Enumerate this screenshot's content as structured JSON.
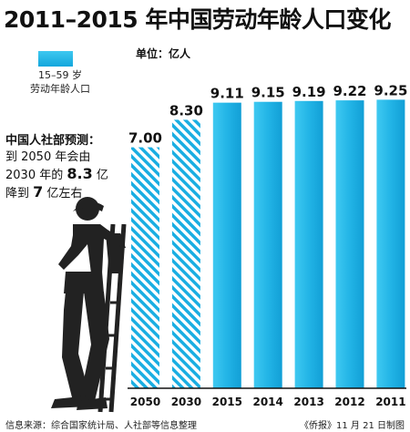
{
  "header": {
    "title": "2011–2015 年中国劳动年龄人口变化",
    "unit": "单位：亿人"
  },
  "legend": {
    "line1": "15–59 岁",
    "line2": "劳动年龄人口"
  },
  "note": {
    "head": "中国人社部预测：",
    "l1": "到 2050 年会由",
    "l2a": "2030 年的 ",
    "l2b": "8.3",
    "l2c": " 亿",
    "l3a": "降到 ",
    "l3b": "7",
    "l3c": " 亿左右"
  },
  "footer": {
    "source": "信息来源：综合国家统计局、人社部等信息整理",
    "credit": "《侨报》11 月 21 日制图"
  },
  "chart_data": {
    "type": "bar",
    "categories": [
      "2050",
      "2030",
      "2015",
      "2014",
      "2013",
      "2012",
      "2011"
    ],
    "values": [
      7.0,
      8.3,
      9.11,
      9.15,
      9.19,
      9.22,
      9.25
    ],
    "value_labels": [
      "7.00",
      "8.30",
      "9.11",
      "9.15",
      "9.19",
      "9.22",
      "9.25"
    ],
    "projected": [
      true,
      true,
      false,
      false,
      false,
      false,
      false
    ],
    "ylabel": "",
    "xlabel": "",
    "colors": {
      "bar": "#1aaee2",
      "bar_light": "#45cdf2",
      "hatch": "#1aaee2",
      "axis": "#111111"
    }
  }
}
